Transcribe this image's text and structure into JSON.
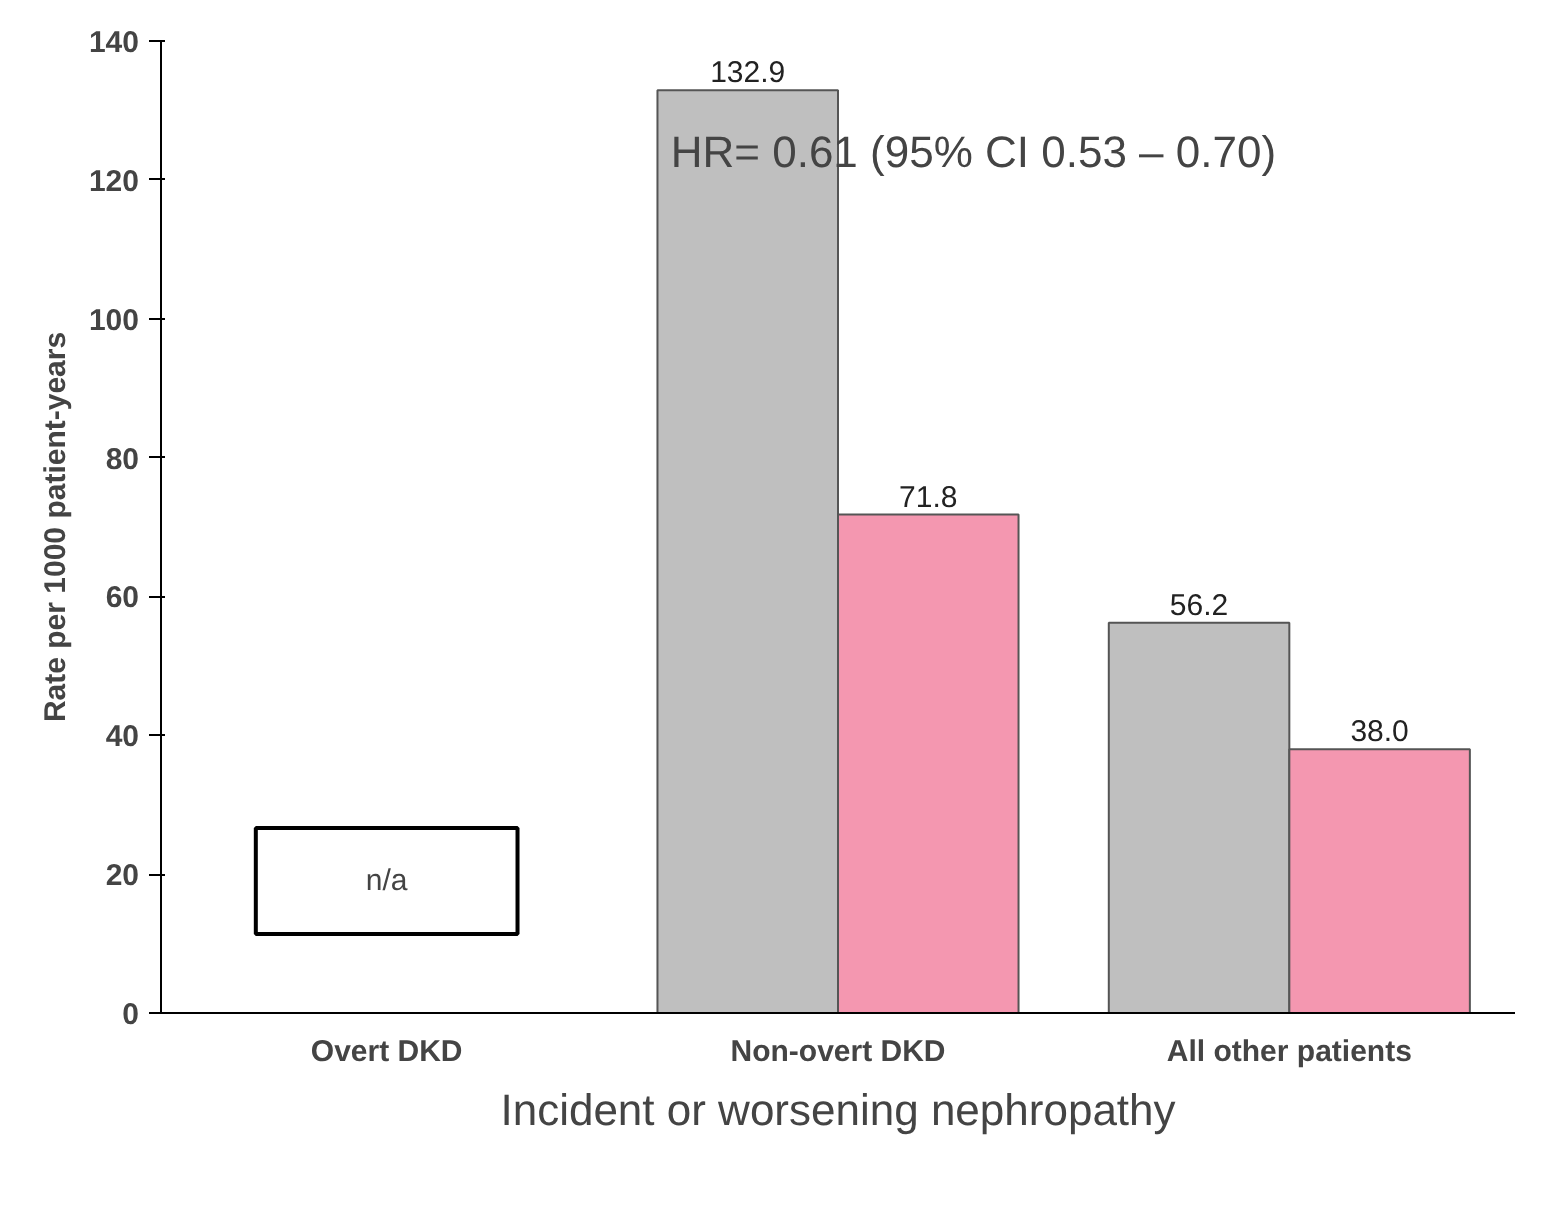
{
  "chart_data": {
    "type": "bar",
    "ylabel": "Rate per 1000 patient-years",
    "xlabel": "Incident or worsening nephropathy",
    "categories": [
      "Overt DKD",
      "Non-overt DKD",
      "All other patients"
    ],
    "series": [
      {
        "color": "#bfbfbf",
        "values": [
          null,
          132.9,
          56.2
        ],
        "value_labels": [
          null,
          "132.9",
          "56.2"
        ]
      },
      {
        "color": "#f497b0",
        "values": [
          null,
          71.8,
          38.0
        ],
        "value_labels": [
          null,
          "71.8",
          "38.0"
        ]
      }
    ],
    "ylim": [
      0,
      140
    ],
    "yticks": [
      0,
      20,
      40,
      60,
      80,
      100,
      120,
      140
    ],
    "grid": false,
    "annotations": [
      "HR= 0.61 (95% CI 0.53 – 0.70)",
      "n/a"
    ]
  }
}
